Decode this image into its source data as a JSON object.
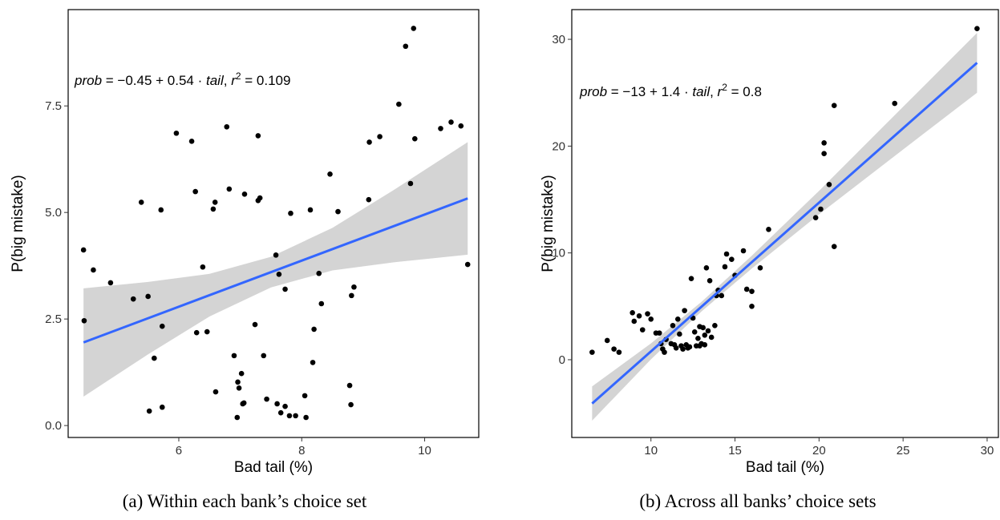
{
  "chart_data": [
    {
      "type": "scatter",
      "caption": "(a) Within each bank’s choice set",
      "xlabel": "Bad tail (%)",
      "ylabel": "P(big mistake)",
      "annotation": [
        {
          "text": "prob",
          "italic": true
        },
        {
          "text": " = −0.45 + 0.54 · "
        },
        {
          "text": "tail",
          "italic": true
        },
        {
          "text": ",  "
        },
        {
          "text": "r",
          "italic": true
        },
        {
          "text": "2",
          "sup": true
        },
        {
          "text": " = 0.109"
        }
      ],
      "color": "#000000",
      "x": [
        4.45,
        4.46,
        4.61,
        4.89,
        5.26,
        5.39,
        5.5,
        5.52,
        5.6,
        5.71,
        5.73,
        5.73,
        5.96,
        6.21,
        6.27,
        6.29,
        6.39,
        6.46,
        6.56,
        6.59,
        6.6,
        6.78,
        6.82,
        6.9,
        6.95,
        6.96,
        6.98,
        7.02,
        7.04,
        7.06,
        7.07,
        7.24,
        7.29,
        7.29,
        7.32,
        7.38,
        7.43,
        7.58,
        7.6,
        7.63,
        7.66,
        7.73,
        7.73,
        7.8,
        7.82,
        7.9,
        8.05,
        8.07,
        8.14,
        8.18,
        8.2,
        8.28,
        8.32,
        8.46,
        8.59,
        8.78,
        8.8,
        8.81,
        8.85,
        9.09,
        9.1,
        9.27,
        9.58,
        9.69,
        9.77,
        9.82,
        9.84,
        10.26,
        10.43,
        10.59,
        10.7
      ],
      "values": [
        4.12,
        2.46,
        3.65,
        3.35,
        2.97,
        5.24,
        3.03,
        0.34,
        1.58,
        5.06,
        2.33,
        0.43,
        6.86,
        6.67,
        5.49,
        2.18,
        3.72,
        2.2,
        5.08,
        5.24,
        0.79,
        7.01,
        5.55,
        1.64,
        0.19,
        1.02,
        0.88,
        1.22,
        0.51,
        0.53,
        5.43,
        2.37,
        6.8,
        5.28,
        5.34,
        1.64,
        0.62,
        4.0,
        0.51,
        3.55,
        0.3,
        3.2,
        0.45,
        0.23,
        4.98,
        0.23,
        0.7,
        0.19,
        5.06,
        1.48,
        2.26,
        3.57,
        2.86,
        5.9,
        5.02,
        0.94,
        0.49,
        3.05,
        3.25,
        5.3,
        6.65,
        6.78,
        7.54,
        8.9,
        5.68,
        9.32,
        6.73,
        6.97,
        7.12,
        7.03,
        3.78
      ],
      "fit": {
        "x": [
          4.45,
          10.7
        ],
        "values": [
          1.95,
          5.33
        ],
        "color": "#3366ff"
      },
      "band": {
        "x": [
          4.45,
          5.5,
          6.5,
          7.5,
          8.5,
          9.5,
          10.7
        ],
        "lower": [
          0.68,
          1.67,
          2.56,
          3.24,
          3.64,
          3.83,
          4.01
        ],
        "upper": [
          3.22,
          3.37,
          3.56,
          3.96,
          4.64,
          5.53,
          6.65
        ],
        "color": "#d4d4d4"
      },
      "xlim": [
        4.2,
        10.88
      ],
      "ylim": [
        -0.28,
        9.76
      ],
      "xticks": [
        6,
        8,
        10
      ],
      "yticks": [
        {
          "value": 0,
          "label": "0.0"
        },
        2.5,
        {
          "value": 5,
          "label": "5.0"
        },
        7.5
      ]
    },
    {
      "type": "scatter",
      "caption": "(b) Across all banks’ choice sets",
      "xlabel": "Bad tail (%)",
      "ylabel": "P(big mistake)",
      "annotation": [
        {
          "text": "prob",
          "italic": true
        },
        {
          "text": " = −13 + 1.4 · "
        },
        {
          "text": "tail",
          "italic": true
        },
        {
          "text": ",  "
        },
        {
          "text": "r",
          "italic": true
        },
        {
          "text": "2",
          "sup": true
        },
        {
          "text": " = 0.8"
        }
      ],
      "color": "#000000",
      "x": [
        6.5,
        7.4,
        7.8,
        8.1,
        8.9,
        9.0,
        9.3,
        9.5,
        9.8,
        10.0,
        10.3,
        10.5,
        10.6,
        10.7,
        10.8,
        10.9,
        11.2,
        11.3,
        11.4,
        11.5,
        11.6,
        11.7,
        11.8,
        11.9,
        12.0,
        12.1,
        12.2,
        12.3,
        12.4,
        12.5,
        12.6,
        12.7,
        12.8,
        12.9,
        12.9,
        13.0,
        13.1,
        13.2,
        13.2,
        13.3,
        13.4,
        13.5,
        13.6,
        13.8,
        13.9,
        14.0,
        14.2,
        14.4,
        14.5,
        14.8,
        15.0,
        15.5,
        15.7,
        16.0,
        16.0,
        16.5,
        17.0,
        19.8,
        20.1,
        20.3,
        20.3,
        20.6,
        20.9,
        20.9,
        24.5,
        29.4
      ],
      "values": [
        0.7,
        1.8,
        1.0,
        0.7,
        4.4,
        3.6,
        4.1,
        2.8,
        4.3,
        3.8,
        2.5,
        2.5,
        1.5,
        1.0,
        0.7,
        1.9,
        1.5,
        3.2,
        1.4,
        1.1,
        3.8,
        2.4,
        1.3,
        1.0,
        4.6,
        1.4,
        1.1,
        1.2,
        7.6,
        3.9,
        2.6,
        1.3,
        2.0,
        3.1,
        1.3,
        1.5,
        3.0,
        2.3,
        1.4,
        8.6,
        2.7,
        7.4,
        2.1,
        3.2,
        6.0,
        6.5,
        6.0,
        8.7,
        9.9,
        9.4,
        7.9,
        10.2,
        6.6,
        6.4,
        5.0,
        8.6,
        12.2,
        13.3,
        14.1,
        19.3,
        20.3,
        16.4,
        23.8,
        10.6,
        24.0,
        31.0
      ],
      "fit": {
        "x": [
          6.5,
          29.4
        ],
        "values": [
          -4.1,
          27.8
        ],
        "color": "#3366ff"
      },
      "band": {
        "x": [
          6.5,
          10,
          13,
          16,
          20,
          25,
          29.4
        ],
        "lower": [
          -5.7,
          0.03,
          4.51,
          8.54,
          13.61,
          19.68,
          25.0
        ],
        "upper": [
          -2.5,
          1.53,
          5.41,
          9.74,
          15.81,
          23.68,
          30.6
        ],
        "color": "#d4d4d4"
      },
      "xlim": [
        5.29,
        30.67
      ],
      "ylim": [
        -7.28,
        32.78
      ],
      "xticks": [
        10,
        15,
        20,
        25,
        30
      ],
      "yticks": [
        0,
        10,
        20,
        30
      ]
    }
  ]
}
